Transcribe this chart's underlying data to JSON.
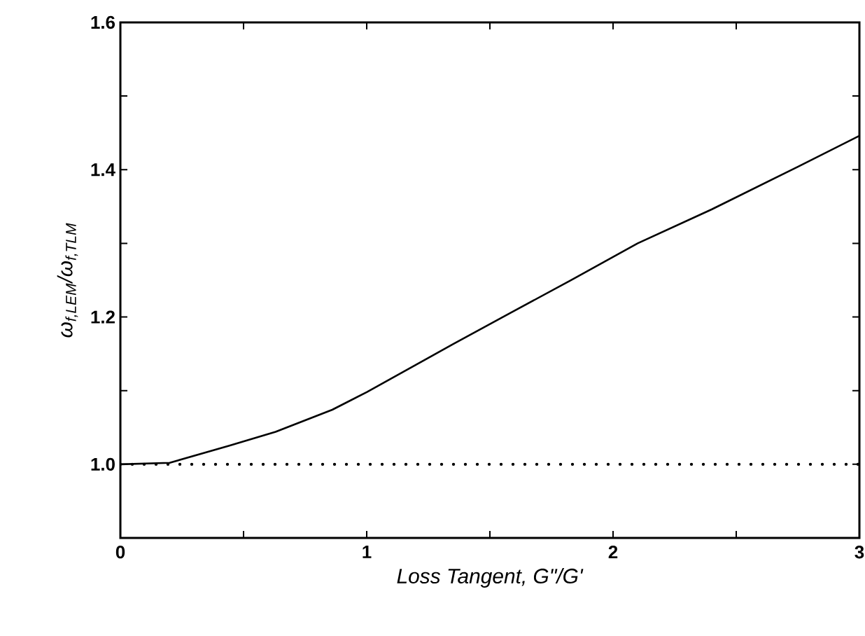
{
  "chart_data": {
    "type": "line",
    "xlabel": "*Loss Tangent, G\"/G'*",
    "ylabel": "*ω$_{f,LEM}$/ω$_{f,TLM}$*",
    "series": [
      {
        "color": "#000000",
        "line_style": "solid",
        "x": [
          0,
          0.2,
          0.44,
          0.63,
          0.86,
          1.0,
          1.35,
          1.58,
          1.83,
          2.1,
          2.4,
          2.75,
          3.0
        ],
        "values": [
          1.0,
          1.002,
          1.025,
          1.044,
          1.074,
          1.098,
          1.163,
          1.205,
          1.25,
          1.3,
          1.346,
          1.404,
          1.446
        ]
      },
      {
        "color": "#000000",
        "line_style": "dotted",
        "x": [
          0,
          3
        ],
        "values": [
          1.0,
          1.0
        ]
      }
    ],
    "xlim": [
      0,
      3
    ],
    "ylim": [
      0.9,
      1.6
    ],
    "xticks": [
      0,
      {
        "value": 0.5,
        "label": null
      },
      1,
      {
        "value": 1.5,
        "label": null
      },
      2,
      {
        "value": 2.5,
        "label": null
      },
      3
    ],
    "yticks": [
      {
        "value": 1.0,
        "label": "1.0"
      },
      {
        "value": 1.1,
        "label": null
      },
      {
        "value": 1.2,
        "label": "1.2"
      },
      {
        "value": 1.3,
        "label": null
      },
      {
        "value": 1.4,
        "label": "1.4"
      },
      {
        "value": 1.5,
        "label": null
      },
      {
        "value": 1.6,
        "label": "1.6"
      }
    ],
    "grid": false,
    "legend": false,
    "marker": "none"
  }
}
